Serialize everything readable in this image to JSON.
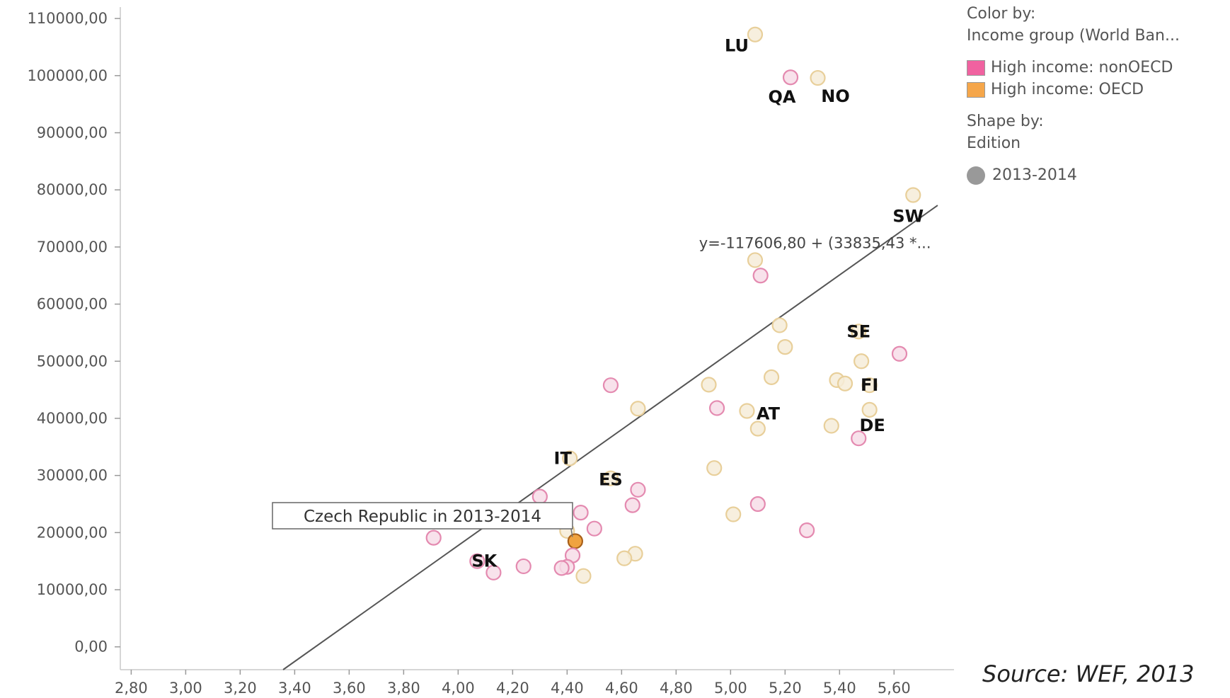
{
  "chart_data": {
    "type": "scatter",
    "x_ticks": [
      "2,80",
      "3,00",
      "3,20",
      "3,40",
      "3,60",
      "3,80",
      "4,00",
      "4,20",
      "4,40",
      "4,60",
      "4,80",
      "5,00",
      "5,20",
      "5,40",
      "5,60"
    ],
    "y_ticks": [
      "0,00",
      "10000,00",
      "20000,00",
      "30000,00",
      "40000,00",
      "50000,00",
      "60000,00",
      "70000,00",
      "80000,00",
      "90000,00",
      "100000,00",
      "110000,00"
    ],
    "xlim": [
      2.76,
      5.82
    ],
    "ylim": [
      -4000,
      112000
    ],
    "grid": false,
    "trend": {
      "equation": "y=-117606,80 + (33835,43 *...",
      "intercept": -117606.8,
      "slope": 33835.43
    },
    "colors": {
      "nonOECD": "#e48ab0",
      "OECD": "#e8cf9a",
      "highlight": "#e8952c"
    },
    "points": [
      {
        "x": 5.09,
        "y": 107200,
        "group": "OECD",
        "label": "LU"
      },
      {
        "x": 5.22,
        "y": 99700,
        "group": "nonOECD",
        "label": "QA"
      },
      {
        "x": 5.32,
        "y": 99600,
        "group": "OECD",
        "label": "NO"
      },
      {
        "x": 5.67,
        "y": 79100,
        "group": "OECD",
        "label": "SW"
      },
      {
        "x": 5.09,
        "y": 67700,
        "group": "OECD",
        "label": ""
      },
      {
        "x": 5.11,
        "y": 65000,
        "group": "nonOECD",
        "label": ""
      },
      {
        "x": 5.18,
        "y": 56300,
        "group": "OECD",
        "label": ""
      },
      {
        "x": 5.2,
        "y": 52500,
        "group": "OECD",
        "label": ""
      },
      {
        "x": 5.47,
        "y": 55200,
        "group": "OECD",
        "label": "SE"
      },
      {
        "x": 5.62,
        "y": 51300,
        "group": "nonOECD",
        "label": ""
      },
      {
        "x": 5.48,
        "y": 50000,
        "group": "OECD",
        "label": ""
      },
      {
        "x": 5.15,
        "y": 47200,
        "group": "OECD",
        "label": ""
      },
      {
        "x": 5.39,
        "y": 46700,
        "group": "OECD",
        "label": ""
      },
      {
        "x": 5.42,
        "y": 46100,
        "group": "OECD",
        "label": ""
      },
      {
        "x": 5.51,
        "y": 45800,
        "group": "OECD",
        "label": "FI"
      },
      {
        "x": 4.92,
        "y": 45900,
        "group": "OECD",
        "label": ""
      },
      {
        "x": 4.56,
        "y": 45800,
        "group": "nonOECD",
        "label": ""
      },
      {
        "x": 4.66,
        "y": 41700,
        "group": "OECD",
        "label": ""
      },
      {
        "x": 4.95,
        "y": 41800,
        "group": "nonOECD",
        "label": ""
      },
      {
        "x": 5.06,
        "y": 41300,
        "group": "OECD",
        "label": "AT"
      },
      {
        "x": 5.51,
        "y": 41500,
        "group": "OECD",
        "label": "DE"
      },
      {
        "x": 5.1,
        "y": 38200,
        "group": "OECD",
        "label": ""
      },
      {
        "x": 5.37,
        "y": 38700,
        "group": "OECD",
        "label": ""
      },
      {
        "x": 5.47,
        "y": 36500,
        "group": "nonOECD",
        "label": ""
      },
      {
        "x": 4.41,
        "y": 33000,
        "group": "OECD",
        "label": "IT"
      },
      {
        "x": 4.94,
        "y": 31300,
        "group": "OECD",
        "label": ""
      },
      {
        "x": 4.56,
        "y": 29500,
        "group": "OECD",
        "label": "ES"
      },
      {
        "x": 4.66,
        "y": 27500,
        "group": "nonOECD",
        "label": ""
      },
      {
        "x": 4.3,
        "y": 26300,
        "group": "nonOECD",
        "label": ""
      },
      {
        "x": 4.64,
        "y": 24800,
        "group": "nonOECD",
        "label": ""
      },
      {
        "x": 5.1,
        "y": 25000,
        "group": "nonOECD",
        "label": ""
      },
      {
        "x": 4.45,
        "y": 23500,
        "group": "nonOECD",
        "label": ""
      },
      {
        "x": 5.01,
        "y": 23200,
        "group": "OECD",
        "label": ""
      },
      {
        "x": 4.5,
        "y": 20700,
        "group": "nonOECD",
        "label": ""
      },
      {
        "x": 5.28,
        "y": 20400,
        "group": "nonOECD",
        "label": ""
      },
      {
        "x": 4.4,
        "y": 20300,
        "group": "OECD",
        "label": ""
      },
      {
        "x": 3.91,
        "y": 19100,
        "group": "nonOECD",
        "label": ""
      },
      {
        "x": 4.43,
        "y": 18500,
        "group": "highlight",
        "label": ""
      },
      {
        "x": 4.42,
        "y": 16000,
        "group": "nonOECD",
        "label": ""
      },
      {
        "x": 4.65,
        "y": 16300,
        "group": "OECD",
        "label": ""
      },
      {
        "x": 4.61,
        "y": 15500,
        "group": "OECD",
        "label": ""
      },
      {
        "x": 4.07,
        "y": 15000,
        "group": "nonOECD",
        "label": "SK"
      },
      {
        "x": 4.24,
        "y": 14100,
        "group": "nonOECD",
        "label": ""
      },
      {
        "x": 4.4,
        "y": 14000,
        "group": "nonOECD",
        "label": ""
      },
      {
        "x": 4.38,
        "y": 13800,
        "group": "nonOECD",
        "label": ""
      },
      {
        "x": 4.13,
        "y": 13000,
        "group": "nonOECD",
        "label": ""
      },
      {
        "x": 4.46,
        "y": 12400,
        "group": "OECD",
        "label": ""
      }
    ],
    "callout": "Czech Republic in 2013-2014"
  },
  "legend": {
    "color_by_title": "Color by:",
    "color_by_field": "Income group (World Ban...",
    "item_nonoecd": "High income: nonOECD",
    "item_oecd": "High income: OECD",
    "swatch_nonoecd": "#f062a0",
    "swatch_oecd": "#f5a64a",
    "shape_by_title": "Shape by:",
    "shape_by_field": "Edition",
    "shape_item": "2013-2014"
  },
  "source": "Source: WEF, 2013"
}
